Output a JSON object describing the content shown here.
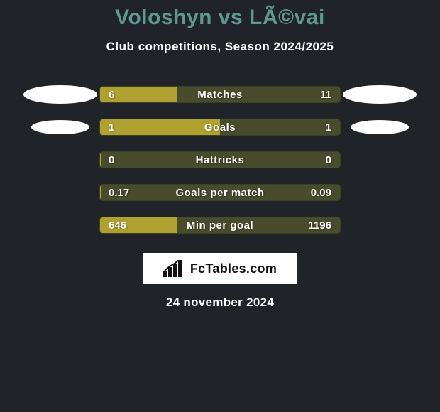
{
  "background_color": "#202428",
  "title": "Voloshyn vs LÃ©vai",
  "title_color": "#609890",
  "title_fontsize": 30,
  "subtitle": "Club competitions, Season 2024/2025",
  "subtitle_color": "#ffffff",
  "subtitle_fontsize": 17,
  "oval_color": "#ffffff",
  "bar_track_color": "#484c2c",
  "bar_fill_color": "#b0a030",
  "bar_text_color": "#ffffff",
  "bar_fontsize": 15,
  "rows": [
    {
      "label": "Matches",
      "left": "6",
      "right": "11",
      "fill_pct": 32,
      "left_oval": 0,
      "right_oval": 0
    },
    {
      "label": "Goals",
      "left": "1",
      "right": "1",
      "fill_pct": 50,
      "left_oval": 1,
      "right_oval": 1
    },
    {
      "label": "Hattricks",
      "left": "0",
      "right": "0",
      "fill_pct": 0.6,
      "left_oval": -1,
      "right_oval": -1
    },
    {
      "label": "Goals per match",
      "left": "0.17",
      "right": "0.09",
      "fill_pct": 0.6,
      "left_oval": -1,
      "right_oval": -1
    },
    {
      "label": "Min per goal",
      "left": "646",
      "right": "1196",
      "fill_pct": 32,
      "left_oval": -1,
      "right_oval": -1
    }
  ],
  "footer_logo_bg": "#ffffff",
  "footer_logo_text": "FcTables.com",
  "footer_logo_text_color": "#111111",
  "footer_logo_icon_color": "#111111",
  "footer_date": "24 november 2024",
  "footer_date_color": "#ffffff"
}
